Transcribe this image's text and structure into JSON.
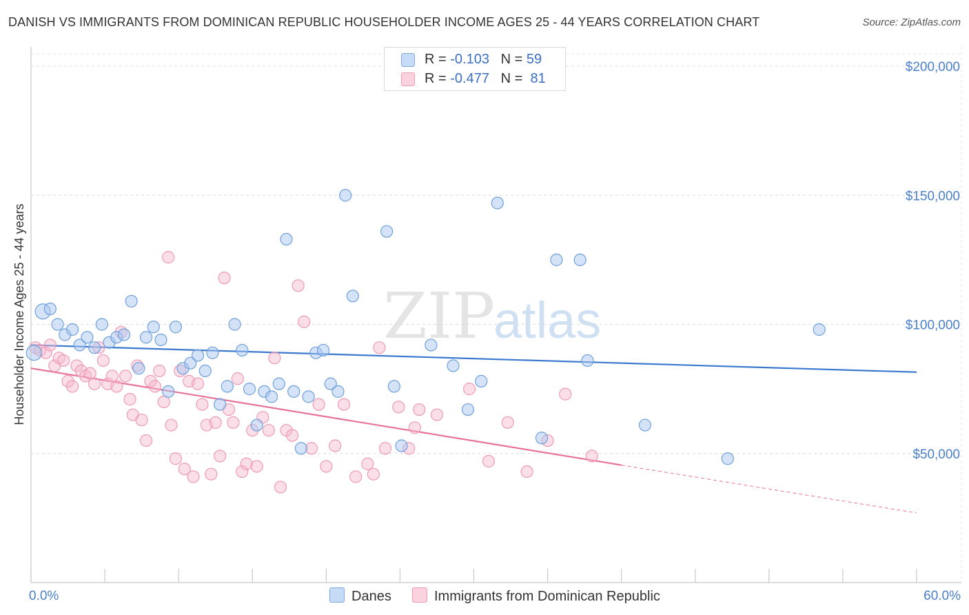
{
  "title": "DANISH VS IMMIGRANTS FROM DOMINICAN REPUBLIC HOUSEHOLDER INCOME AGES 25 - 44 YEARS CORRELATION CHART",
  "source": "Source: ZipAtlas.com",
  "legend": {
    "rows": [
      {
        "r_label": "R = ",
        "r_value": "-0.103",
        "n_label": "N = ",
        "n_value": "59",
        "color": "#a9c8f0"
      },
      {
        "r_label": "R = ",
        "r_value": "-0.477",
        "n_label": "N = ",
        "n_value": "81",
        "color": "#f7b9cc"
      }
    ]
  },
  "bottom_legend": {
    "danes": "Danes",
    "dominican": "Immigrants from Dominican Republic"
  },
  "chart_data": {
    "type": "scatter",
    "ylabel": "Householder Income Ages 25 - 44 years",
    "x_tick_labels": [
      "0.0%",
      "60.0%"
    ],
    "y_tick_labels": [
      "$50,000",
      "$100,000",
      "$150,000",
      "$200,000"
    ],
    "y_ticks": [
      50000,
      100000,
      150000,
      200000
    ],
    "xlim": [
      0,
      60
    ],
    "ylim": [
      0,
      210000
    ],
    "grid": true,
    "legend_position": "top-center",
    "colors": {
      "danes_fill": "#a9c8f0",
      "danes_line": "#3a78cf",
      "dom_fill": "#f7b9cc",
      "dom_line": "#e8719b"
    },
    "series": [
      {
        "name": "Danes",
        "trend": {
          "x0": 0,
          "y0": 92000,
          "x1": 60,
          "y1": 81500
        },
        "points": [
          [
            0.2,
            89000
          ],
          [
            0.8,
            105000
          ],
          [
            1.3,
            106000
          ],
          [
            1.8,
            100000
          ],
          [
            2.3,
            96000
          ],
          [
            2.8,
            98000
          ],
          [
            3.3,
            92000
          ],
          [
            3.8,
            95000
          ],
          [
            4.3,
            91000
          ],
          [
            4.8,
            100000
          ],
          [
            5.3,
            93000
          ],
          [
            5.8,
            95000
          ],
          [
            6.3,
            96000
          ],
          [
            6.8,
            109000
          ],
          [
            7.3,
            83000
          ],
          [
            7.8,
            95000
          ],
          [
            8.3,
            99000
          ],
          [
            8.8,
            94000
          ],
          [
            9.3,
            74000
          ],
          [
            9.8,
            99000
          ],
          [
            10.3,
            83000
          ],
          [
            10.8,
            85000
          ],
          [
            11.3,
            88000
          ],
          [
            11.8,
            82000
          ],
          [
            12.3,
            89000
          ],
          [
            12.8,
            69000
          ],
          [
            13.3,
            76000
          ],
          [
            13.8,
            100000
          ],
          [
            14.3,
            90000
          ],
          [
            14.8,
            75000
          ],
          [
            15.3,
            61000
          ],
          [
            15.8,
            74000
          ],
          [
            16.3,
            72000
          ],
          [
            16.8,
            77000
          ],
          [
            17.3,
            133000
          ],
          [
            17.8,
            74000
          ],
          [
            18.3,
            52000
          ],
          [
            18.8,
            72000
          ],
          [
            19.3,
            89000
          ],
          [
            19.8,
            90000
          ],
          [
            20.3,
            77000
          ],
          [
            20.8,
            74000
          ],
          [
            21.3,
            150000
          ],
          [
            21.8,
            111000
          ],
          [
            24.1,
            136000
          ],
          [
            24.6,
            76000
          ],
          [
            25.1,
            53000
          ],
          [
            27.1,
            92000
          ],
          [
            28.6,
            84000
          ],
          [
            29.6,
            67000
          ],
          [
            30.5,
            78000
          ],
          [
            31.6,
            147000
          ],
          [
            34.6,
            56000
          ],
          [
            35.6,
            125000
          ],
          [
            37.2,
            125000
          ],
          [
            37.7,
            86000
          ],
          [
            41.6,
            61000
          ],
          [
            47.2,
            48000
          ],
          [
            53.4,
            98000
          ]
        ]
      },
      {
        "name": "Immigrants from Dominican Republic",
        "trend": {
          "x0": 0,
          "y0": 83000,
          "x1": 40,
          "y1": 45500,
          "x_dash_end": 60,
          "y_dash_end": 27000
        },
        "points": [
          [
            0.3,
            91000
          ],
          [
            0.6,
            90000
          ],
          [
            1.0,
            89000
          ],
          [
            1.3,
            92000
          ],
          [
            1.6,
            84000
          ],
          [
            1.9,
            87000
          ],
          [
            2.2,
            86000
          ],
          [
            2.5,
            78000
          ],
          [
            2.8,
            76000
          ],
          [
            3.1,
            84000
          ],
          [
            3.4,
            82000
          ],
          [
            3.7,
            80000
          ],
          [
            4.0,
            81000
          ],
          [
            4.3,
            77000
          ],
          [
            4.6,
            91000
          ],
          [
            4.9,
            86000
          ],
          [
            5.2,
            77000
          ],
          [
            5.5,
            80000
          ],
          [
            5.8,
            76000
          ],
          [
            6.1,
            97000
          ],
          [
            6.4,
            80000
          ],
          [
            6.7,
            71000
          ],
          [
            6.9,
            65000
          ],
          [
            7.2,
            84000
          ],
          [
            7.5,
            63000
          ],
          [
            7.8,
            55000
          ],
          [
            8.1,
            78000
          ],
          [
            8.4,
            76000
          ],
          [
            8.7,
            82000
          ],
          [
            9.0,
            70000
          ],
          [
            9.3,
            126000
          ],
          [
            9.5,
            61000
          ],
          [
            9.8,
            48000
          ],
          [
            10.1,
            82000
          ],
          [
            10.4,
            44000
          ],
          [
            10.7,
            78000
          ],
          [
            11.0,
            41000
          ],
          [
            11.3,
            77000
          ],
          [
            11.6,
            69000
          ],
          [
            11.9,
            61000
          ],
          [
            12.2,
            42000
          ],
          [
            12.5,
            62000
          ],
          [
            12.8,
            49000
          ],
          [
            13.1,
            118000
          ],
          [
            13.4,
            67000
          ],
          [
            13.7,
            62000
          ],
          [
            14.0,
            79000
          ],
          [
            14.3,
            43000
          ],
          [
            14.6,
            46000
          ],
          [
            15.0,
            59000
          ],
          [
            15.3,
            45000
          ],
          [
            15.7,
            64000
          ],
          [
            16.1,
            59000
          ],
          [
            16.5,
            87000
          ],
          [
            16.9,
            37000
          ],
          [
            17.3,
            59000
          ],
          [
            17.7,
            57000
          ],
          [
            18.1,
            115000
          ],
          [
            18.5,
            101000
          ],
          [
            19.0,
            52000
          ],
          [
            19.5,
            69000
          ],
          [
            20.0,
            45000
          ],
          [
            20.6,
            53000
          ],
          [
            21.2,
            69000
          ],
          [
            22.0,
            41000
          ],
          [
            22.8,
            46000
          ],
          [
            23.2,
            42000
          ],
          [
            23.6,
            91000
          ],
          [
            24.0,
            52000
          ],
          [
            24.9,
            68000
          ],
          [
            25.6,
            52000
          ],
          [
            26.0,
            60000
          ],
          [
            26.3,
            67000
          ],
          [
            27.5,
            65000
          ],
          [
            29.7,
            75000
          ],
          [
            31.0,
            47000
          ],
          [
            32.3,
            62000
          ],
          [
            33.6,
            43000
          ],
          [
            35.0,
            55000
          ],
          [
            36.2,
            73000
          ],
          [
            38.0,
            49000
          ]
        ]
      }
    ]
  }
}
